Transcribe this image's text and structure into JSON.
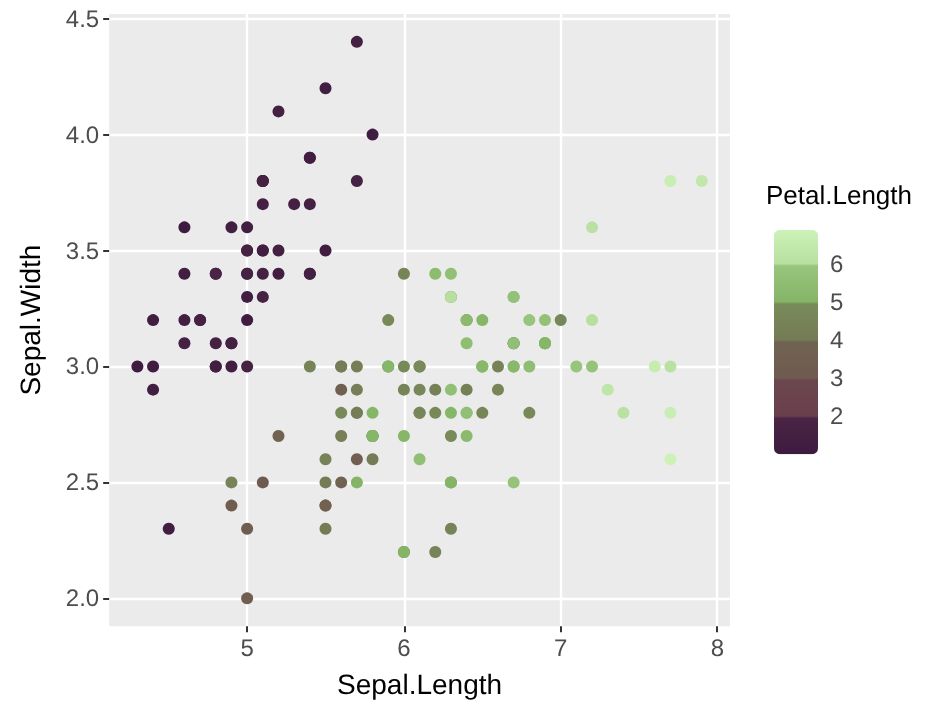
{
  "chart_data": {
    "type": "scatter",
    "xlabel": "Sepal.Length",
    "ylabel": "Sepal.Width",
    "clabel": "Petal.Length",
    "x": [
      5.1,
      4.9,
      4.7,
      4.6,
      5.0,
      5.4,
      4.6,
      5.0,
      4.4,
      4.9,
      5.4,
      4.8,
      4.8,
      4.3,
      5.8,
      5.7,
      5.4,
      5.1,
      5.7,
      5.1,
      5.4,
      5.1,
      4.6,
      5.1,
      4.8,
      5.0,
      5.0,
      5.2,
      5.2,
      4.7,
      4.8,
      5.4,
      5.2,
      5.5,
      4.9,
      5.0,
      5.5,
      4.9,
      4.4,
      5.1,
      5.0,
      4.5,
      4.4,
      5.0,
      5.1,
      4.8,
      5.1,
      4.6,
      5.3,
      5.0,
      7.0,
      6.4,
      6.9,
      5.5,
      6.5,
      5.7,
      6.3,
      4.9,
      6.6,
      5.2,
      5.0,
      5.9,
      6.0,
      6.1,
      5.6,
      6.7,
      5.6,
      5.8,
      6.2,
      5.6,
      5.9,
      6.1,
      6.3,
      6.1,
      6.4,
      6.6,
      6.8,
      6.7,
      6.0,
      5.7,
      5.5,
      5.5,
      5.8,
      6.0,
      5.4,
      6.0,
      6.7,
      6.3,
      5.6,
      5.5,
      5.5,
      6.1,
      5.8,
      5.0,
      5.6,
      5.7,
      5.7,
      6.2,
      5.1,
      5.7,
      6.3,
      5.8,
      7.1,
      6.3,
      6.5,
      7.6,
      4.9,
      7.3,
      6.7,
      7.2,
      6.5,
      6.4,
      6.8,
      5.7,
      5.8,
      6.4,
      6.5,
      7.7,
      7.7,
      6.0,
      6.9,
      5.6,
      7.7,
      6.3,
      6.7,
      7.2,
      6.2,
      6.1,
      6.4,
      7.2,
      7.4,
      7.9,
      6.4,
      6.3,
      6.1,
      7.7,
      6.3,
      6.4,
      6.0,
      6.9,
      6.7,
      6.9,
      5.8,
      6.8,
      6.7,
      6.7,
      6.3,
      6.5,
      6.2,
      5.9
    ],
    "values": [
      3.5,
      3.0,
      3.2,
      3.1,
      3.6,
      3.9,
      3.4,
      3.4,
      2.9,
      3.1,
      3.7,
      3.4,
      3.0,
      3.0,
      4.0,
      4.4,
      3.9,
      3.5,
      3.8,
      3.8,
      3.4,
      3.7,
      3.6,
      3.3,
      3.4,
      3.0,
      3.4,
      3.5,
      3.4,
      3.2,
      3.1,
      3.4,
      4.1,
      4.2,
      3.1,
      3.2,
      3.5,
      3.6,
      3.0,
      3.4,
      3.5,
      2.3,
      3.2,
      3.5,
      3.8,
      3.0,
      3.8,
      3.2,
      3.7,
      3.3,
      3.2,
      3.2,
      3.1,
      2.3,
      2.8,
      2.8,
      3.3,
      2.4,
      2.9,
      2.7,
      2.0,
      3.0,
      2.2,
      2.9,
      2.9,
      3.1,
      3.0,
      2.7,
      2.2,
      2.5,
      3.2,
      2.8,
      2.5,
      2.8,
      2.9,
      3.0,
      2.8,
      3.0,
      2.9,
      2.6,
      2.4,
      2.4,
      2.7,
      2.7,
      3.0,
      3.4,
      3.1,
      2.3,
      3.0,
      2.5,
      2.6,
      3.0,
      2.6,
      2.3,
      2.7,
      3.0,
      2.9,
      2.9,
      2.5,
      2.8,
      3.3,
      2.7,
      3.0,
      2.9,
      3.0,
      3.0,
      2.5,
      2.9,
      2.5,
      3.6,
      3.2,
      2.7,
      3.0,
      2.5,
      2.8,
      3.2,
      3.0,
      3.8,
      2.6,
      2.2,
      3.2,
      2.8,
      2.8,
      2.7,
      3.3,
      3.2,
      2.8,
      3.0,
      2.8,
      3.0,
      2.8,
      3.8,
      2.8,
      2.8,
      2.6,
      3.0,
      3.4,
      3.1,
      3.0,
      3.1,
      3.1,
      3.1,
      2.7,
      3.2,
      3.3,
      3.0,
      2.5,
      3.0,
      3.4,
      3.0
    ],
    "cvalues": [
      1.4,
      1.4,
      1.3,
      1.5,
      1.4,
      1.7,
      1.4,
      1.5,
      1.4,
      1.5,
      1.5,
      1.6,
      1.4,
      1.1,
      1.2,
      1.5,
      1.3,
      1.4,
      1.7,
      1.5,
      1.7,
      1.5,
      1.0,
      1.7,
      1.9,
      1.6,
      1.6,
      1.5,
      1.4,
      1.6,
      1.6,
      1.5,
      1.5,
      1.4,
      1.5,
      1.2,
      1.3,
      1.4,
      1.3,
      1.5,
      1.3,
      1.3,
      1.3,
      1.6,
      1.9,
      1.4,
      1.6,
      1.4,
      1.5,
      1.4,
      4.7,
      4.5,
      4.9,
      4.0,
      4.6,
      4.5,
      4.7,
      3.3,
      4.6,
      3.9,
      3.5,
      4.2,
      4.0,
      4.7,
      3.6,
      4.4,
      4.5,
      4.1,
      4.5,
      3.9,
      4.8,
      4.0,
      4.9,
      4.7,
      4.3,
      4.4,
      4.8,
      5.0,
      4.5,
      3.5,
      3.8,
      3.7,
      3.9,
      5.1,
      4.5,
      4.5,
      4.7,
      4.4,
      4.1,
      4.0,
      4.4,
      4.6,
      4.0,
      3.3,
      4.2,
      4.2,
      4.2,
      4.3,
      3.0,
      4.1,
      6.0,
      5.1,
      5.9,
      5.6,
      5.8,
      6.6,
      4.5,
      6.3,
      5.8,
      6.1,
      5.1,
      5.3,
      5.5,
      5.0,
      5.1,
      5.3,
      5.5,
      6.7,
      6.9,
      5.0,
      5.7,
      4.9,
      6.7,
      4.9,
      5.7,
      6.0,
      4.8,
      4.9,
      5.6,
      5.8,
      6.1,
      6.4,
      5.6,
      5.1,
      5.6,
      6.1,
      5.6,
      5.5,
      4.8,
      5.4,
      5.6,
      5.1,
      5.1,
      5.9,
      5.7,
      5.2,
      5.0,
      5.2,
      5.4,
      5.1
    ],
    "clim": [
      1.0,
      6.9
    ],
    "cticks": [
      2,
      3,
      4,
      5,
      6
    ],
    "xlim": [
      4.12,
      8.08
    ],
    "xticks": [
      5,
      6,
      7,
      8
    ],
    "ylim": [
      1.88,
      4.52
    ],
    "yticks": [
      {
        "value": 2,
        "label": "2.0"
      },
      {
        "value": 2.5,
        "label": "2.5"
      },
      {
        "value": 3,
        "label": "3.0"
      },
      {
        "value": 3.5,
        "label": "3.5"
      },
      {
        "value": 4,
        "label": "4.0"
      },
      {
        "value": 4.5,
        "label": "4.5"
      }
    ],
    "grid": true,
    "marker": "circle"
  }
}
